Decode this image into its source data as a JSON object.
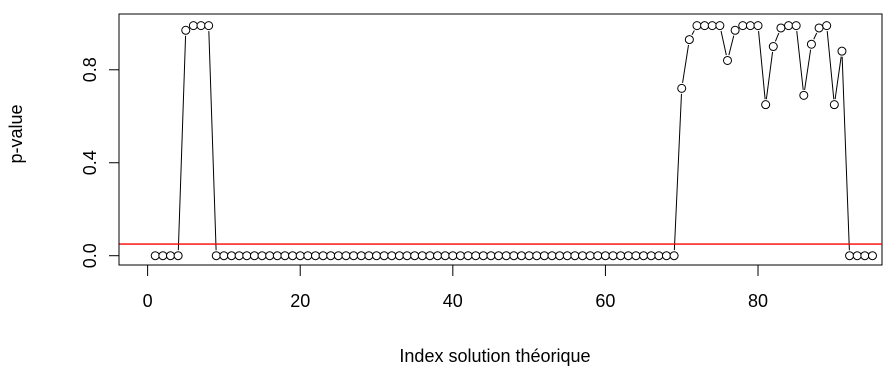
{
  "chart_data": {
    "type": "scatter",
    "title": "",
    "xlabel": "Index solution théorique",
    "ylabel": "p-value",
    "xlim": [
      0,
      96
    ],
    "ylim": [
      0,
      1
    ],
    "x_ticks": [
      0,
      20,
      40,
      60,
      80
    ],
    "x_tick_labels": [
      "0",
      "20",
      "40",
      "60",
      "80"
    ],
    "y_ticks": [
      0.0,
      0.4,
      0.8
    ],
    "y_tick_labels": [
      "0.0",
      "0.4",
      "0.8"
    ],
    "grid": false,
    "legend": "none",
    "point_style": "open-circle",
    "connecting_lines": true,
    "series": [
      {
        "x": [
          1,
          2,
          3,
          4,
          5,
          6,
          7,
          8,
          9,
          10,
          11,
          12,
          13,
          14,
          15,
          16,
          17,
          18,
          19,
          20,
          21,
          22,
          23,
          24,
          25,
          26,
          27,
          28,
          29,
          30,
          31,
          32,
          33,
          34,
          35,
          36,
          37,
          38,
          39,
          40,
          41,
          42,
          43,
          44,
          45,
          46,
          47,
          48,
          49,
          50,
          51,
          52,
          53,
          54,
          55,
          56,
          57,
          58,
          59,
          60,
          61,
          62,
          63,
          64,
          65,
          66,
          67,
          68,
          69,
          70,
          71,
          72,
          73,
          74,
          75,
          76,
          77,
          78,
          79,
          80,
          81,
          82,
          83,
          84,
          85,
          86,
          87,
          88,
          89,
          90,
          91,
          92,
          93,
          94,
          95
        ],
        "values": [
          0,
          0,
          0,
          0,
          0.97,
          0.99,
          0.99,
          0.99,
          0,
          0,
          0,
          0,
          0,
          0,
          0,
          0,
          0,
          0,
          0,
          0,
          0,
          0,
          0,
          0,
          0,
          0,
          0,
          0,
          0,
          0,
          0,
          0,
          0,
          0,
          0,
          0,
          0,
          0,
          0,
          0,
          0,
          0,
          0,
          0,
          0,
          0,
          0,
          0,
          0,
          0,
          0,
          0,
          0,
          0,
          0,
          0,
          0,
          0,
          0,
          0,
          0,
          0,
          0,
          0,
          0,
          0,
          0,
          0,
          0,
          0.72,
          0.93,
          0.99,
          0.99,
          0.99,
          0.99,
          0.84,
          0.97,
          0.99,
          0.99,
          0.99,
          0.65,
          0.9,
          0.98,
          0.99,
          0.99,
          0.69,
          0.91,
          0.98,
          0.99,
          0.65,
          0.88,
          0,
          0,
          0,
          0
        ]
      }
    ],
    "reference_line": {
      "y": 0.05,
      "color": "#ff0000"
    },
    "colors": {
      "axis": "#000000",
      "points": "#000000",
      "reference": "#ff0000"
    }
  }
}
